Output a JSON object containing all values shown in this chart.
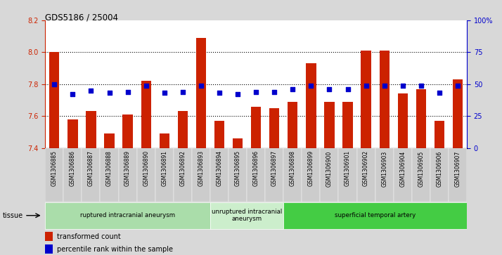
{
  "title": "GDS5186 / 25004",
  "samples": [
    "GSM1306885",
    "GSM1306886",
    "GSM1306887",
    "GSM1306888",
    "GSM1306889",
    "GSM1306890",
    "GSM1306891",
    "GSM1306892",
    "GSM1306893",
    "GSM1306894",
    "GSM1306895",
    "GSM1306896",
    "GSM1306897",
    "GSM1306898",
    "GSM1306899",
    "GSM1306900",
    "GSM1306901",
    "GSM1306902",
    "GSM1306903",
    "GSM1306904",
    "GSM1306905",
    "GSM1306906",
    "GSM1306907"
  ],
  "bar_values": [
    8.0,
    7.58,
    7.63,
    7.49,
    7.61,
    7.82,
    7.49,
    7.63,
    8.09,
    7.57,
    7.46,
    7.66,
    7.65,
    7.69,
    7.93,
    7.69,
    7.69,
    8.01,
    8.01,
    7.74,
    7.77,
    7.57,
    7.83
  ],
  "percentile_values": [
    50,
    42,
    45,
    43,
    44,
    49,
    43,
    44,
    49,
    43,
    42,
    44,
    44,
    46,
    49,
    46,
    46,
    49,
    49,
    49,
    49,
    43,
    49
  ],
  "bar_color": "#cc2200",
  "dot_color": "#0000cc",
  "ylim_left": [
    7.4,
    8.2
  ],
  "ylim_right": [
    0,
    100
  ],
  "yticks_left": [
    7.4,
    7.6,
    7.8,
    8.0,
    8.2
  ],
  "yticks_right": [
    0,
    25,
    50,
    75,
    100
  ],
  "ytick_labels_right": [
    "0",
    "25",
    "50",
    "75",
    "100%"
  ],
  "hlines": [
    7.6,
    7.8,
    8.0
  ],
  "groups": [
    {
      "label": "ruptured intracranial aneurysm",
      "start": 0,
      "end": 9,
      "color": "#aaddaa"
    },
    {
      "label": "unruptured intracranial\naneurysm",
      "start": 9,
      "end": 13,
      "color": "#cceecc"
    },
    {
      "label": "superficial temporal artery",
      "start": 13,
      "end": 23,
      "color": "#44cc44"
    }
  ],
  "tissue_label": "tissue",
  "legend_bar_label": "transformed count",
  "legend_dot_label": "percentile rank within the sample",
  "background_color": "#d8d8d8",
  "plot_bg_color": "#ffffff",
  "xtick_bg_color": "#cccccc"
}
